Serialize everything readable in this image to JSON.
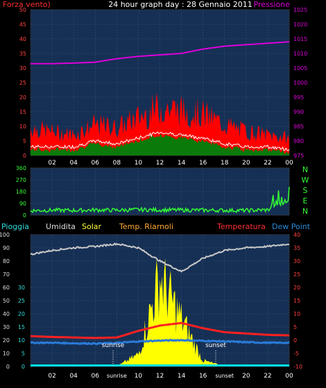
{
  "header": {
    "left_label": "Forza vento)",
    "title": "24 hour graph day : 28 Gennaio 2011",
    "right_label": "Pressione"
  },
  "colors": {
    "background": "#000000",
    "plot_bg": "#163055",
    "grid": "#3a5475",
    "wind": "#ff0000",
    "gust": "#ffffff",
    "avg": "#0a7a0a",
    "pressure": "#dd00dd",
    "direction": "#33ff33",
    "humidity": "#c8c8c8",
    "solar": "#ffff00",
    "temperature": "#ff2020",
    "dewpoint": "#2a7bd8",
    "rain": "#00e0e0",
    "axis_text_left": "#ff4040",
    "axis_text_right_top": "#dd00dd",
    "axis_text_mid": "#33ff33",
    "axis_text_bottom_left": "#33dddd",
    "axis_text_bottom_right": "#ff4040"
  },
  "top_chart": {
    "left_axis": [
      "0",
      "5",
      "10",
      "15",
      "20",
      "25",
      "30",
      "35",
      "40",
      "45",
      "50"
    ],
    "right_axis": [
      "975",
      "980",
      "985",
      "990",
      "995",
      "1000",
      "1005",
      "1010",
      "1015",
      "1020",
      "1025"
    ],
    "x_labels": [
      "02",
      "04",
      "06",
      "08",
      "10",
      "12",
      "14",
      "16",
      "18",
      "20",
      "22",
      "00"
    ]
  },
  "mid_chart": {
    "left_axis": [
      "0",
      "90",
      "180",
      "270",
      "360"
    ],
    "compass": [
      "N",
      "W",
      "S",
      "E",
      "N"
    ]
  },
  "bottom_legend": {
    "rain": "Pioggia",
    "humidity": "Umidita",
    "solar": "Solar",
    "temp_riarnoli": "Temp. Riarnoli",
    "temperature": "Temperatura",
    "dewpoint": "Dew Point"
  },
  "bottom_chart": {
    "left_axis": [
      "0",
      "10",
      "20",
      "30",
      "40",
      "50",
      "60",
      "70",
      "80",
      "90",
      "100"
    ],
    "left_axis2": [
      "0",
      "5",
      "10",
      "15",
      "20",
      "25",
      "30"
    ],
    "right_axis": [
      "-10",
      "-5",
      "0",
      "5",
      "10",
      "15",
      "20",
      "25",
      "30",
      "35",
      "40"
    ],
    "x_labels": [
      "02",
      "04",
      "06",
      "sunrise",
      "10",
      "12",
      "14",
      "16",
      "sunset",
      "20",
      "22",
      "00"
    ],
    "sunrise_label": "sunrise",
    "sunset_label": "sunset"
  },
  "chart_data": [
    {
      "type": "line",
      "x": [
        "00",
        "02",
        "04",
        "06",
        "08",
        "10",
        "12",
        "14",
        "16",
        "18",
        "20",
        "22",
        "00"
      ],
      "ylim": [
        0,
        50
      ],
      "y2lim": [
        975,
        1025
      ],
      "series": [
        {
          "name": "Pressione",
          "values": [
            1006.5,
            1006.5,
            1006.7,
            1007,
            1008.2,
            1009,
            1009.5,
            1010,
            1011.5,
            1012.5,
            1013,
            1013.5,
            1014
          ]
        },
        {
          "values": [
            8,
            7,
            6,
            9,
            8,
            11,
            14,
            13,
            12,
            9,
            7,
            6,
            5
          ]
        },
        {
          "values": [
            3,
            3,
            3,
            5,
            4,
            6,
            8,
            7,
            6,
            4,
            3,
            3,
            2
          ]
        }
      ]
    },
    {
      "type": "scatter",
      "ylim": [
        0,
        360
      ],
      "series": [
        {
          "values": [
            35,
            38,
            36,
            40,
            38,
            42,
            40,
            39,
            38,
            37,
            36,
            40,
            120
          ]
        }
      ]
    },
    {
      "type": "line",
      "x": [
        "00",
        "02",
        "04",
        "06",
        "08",
        "10",
        "12",
        "14",
        "16",
        "18",
        "20",
        "22",
        "00"
      ],
      "ylim": [
        0,
        100
      ],
      "y2lim": [
        -10,
        40
      ],
      "series": [
        {
          "name": "Umidita",
          "values": [
            85,
            88,
            90,
            91,
            93,
            90,
            80,
            72,
            82,
            88,
            90,
            91,
            93
          ]
        },
        {
          "name": "Temperatura",
          "values": [
            1.5,
            1.2,
            1.0,
            0.8,
            1.0,
            3.5,
            5.5,
            6.5,
            4.5,
            3.0,
            2.5,
            2.0,
            1.8
          ]
        },
        {
          "name": "Dew Point",
          "values": [
            -1,
            -1,
            -1.2,
            -1.3,
            -1.1,
            -0.5,
            -0.2,
            0,
            -0.3,
            -0.5,
            -0.8,
            -1,
            -1
          ]
        },
        {
          "name": "Solar",
          "values": [
            0,
            0,
            0,
            0,
            0,
            10,
            75,
            40,
            5,
            0,
            0,
            0,
            0
          ]
        },
        {
          "name": "Pioggia",
          "values": [
            0,
            0,
            0,
            0,
            0,
            0,
            0,
            0,
            0,
            0,
            0,
            0,
            0
          ]
        }
      ]
    }
  ]
}
